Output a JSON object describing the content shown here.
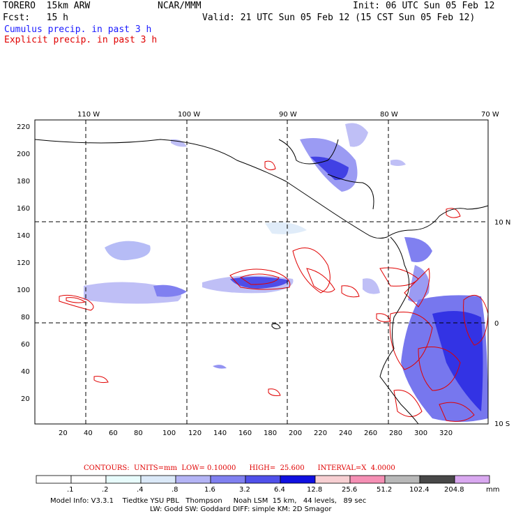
{
  "header": {
    "model": "TORERO  15km ARW",
    "org": "NCAR/MMM",
    "init": "Init: 06 UTC Sun 05 Feb 12",
    "fcst": "Fcst:   15 h",
    "valid": "Valid: 21 UTC Sun 05 Feb 12 (15 CST Sun 05 Feb 12)",
    "legend_cumulus": "Cumulus precip. in past 3 h",
    "legend_explicit": "Explicit precip. in past 3 h"
  },
  "map": {
    "lon_labels": [
      "110 W",
      "100 W",
      "90 W",
      "80 W",
      "70 W"
    ],
    "lat_labels": [
      "10 N",
      "0",
      "10 S"
    ],
    "x_ticks": [
      "20",
      "40",
      "60",
      "80",
      "100",
      "120",
      "140",
      "160",
      "180",
      "200",
      "220",
      "240",
      "260",
      "280",
      "300",
      "320"
    ],
    "y_ticks": [
      "220",
      "200",
      "180",
      "160",
      "140",
      "120",
      "100",
      "80",
      "60",
      "40",
      "20"
    ]
  },
  "contour_info": {
    "text": "CONTOURS:  UNITS=mm  LOW= 0.10000      HIGH=  25.600      INTERVAL=X  4.0000"
  },
  "colorbar": {
    "labels": [
      ".1",
      ".2",
      ".4",
      ".8",
      "1.6",
      "3.2",
      "6.4",
      "12.8",
      "25.6",
      "51.2",
      "102.4",
      "204.8"
    ],
    "unit": "mm",
    "colors": [
      "#ffffff",
      "#ffffff",
      "#e8fcfc",
      "#dbe9f8",
      "#b4b4f5",
      "#8080f0",
      "#5050ea",
      "#1010e0",
      "#f7cfd2",
      "#f58fb4",
      "#b8b8b8",
      "#484848",
      "#d9a8f0"
    ]
  },
  "footer": {
    "line1": "Model Info: V3.3.1    Tiedtke YSU PBL   Thompson     Noah LSM  15 km,   44 levels,   89 sec",
    "line2": "LW: Godd SW: Goddard DIFF: simple KM: 2D Smagor"
  }
}
